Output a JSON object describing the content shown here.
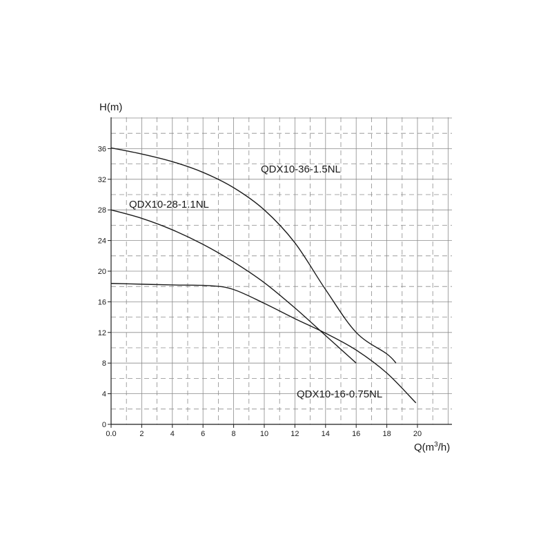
{
  "chart_data": {
    "type": "line",
    "ylabel": "H(m)",
    "xlabel": "Q(m",
    "xlabel_sup": "3",
    "xlabel_end": "/h)",
    "xlim": [
      0,
      22
    ],
    "ylim": [
      0,
      40
    ],
    "x_ticks": [
      "0.0",
      "2",
      "4",
      "6",
      "8",
      "10",
      "12",
      "14",
      "16",
      "18",
      "20"
    ],
    "y_ticks": [
      "0",
      "4",
      "8",
      "12",
      "16",
      "20",
      "24",
      "28",
      "32",
      "36"
    ],
    "grid": true,
    "series": [
      {
        "name": "QDX10-36-1.5NL",
        "x": [
          0,
          2,
          4,
          6,
          8,
          10,
          12,
          14,
          16,
          18,
          18.6
        ],
        "y": [
          36.1,
          35.3,
          34.3,
          32.9,
          30.9,
          28.0,
          23.7,
          17.6,
          12.0,
          9.2,
          8.0
        ]
      },
      {
        "name": "QDX10-28-1.1NL",
        "x": [
          0,
          2,
          4,
          6,
          8,
          10,
          12,
          14,
          16
        ],
        "y": [
          28.0,
          26.9,
          25.4,
          23.5,
          21.2,
          18.5,
          15.2,
          11.6,
          8.0
        ]
      },
      {
        "name": "QDX10-16-0.75NL",
        "x": [
          0,
          2,
          4,
          6.5,
          8,
          10,
          12,
          14,
          16,
          18,
          19.9
        ],
        "y": [
          18.4,
          18.3,
          18.2,
          18.1,
          17.6,
          15.8,
          13.8,
          11.9,
          9.7,
          6.7,
          2.8
        ]
      }
    ],
    "series_label_positions": [
      "top-right of curve",
      "top-left",
      "bottom-right"
    ]
  }
}
